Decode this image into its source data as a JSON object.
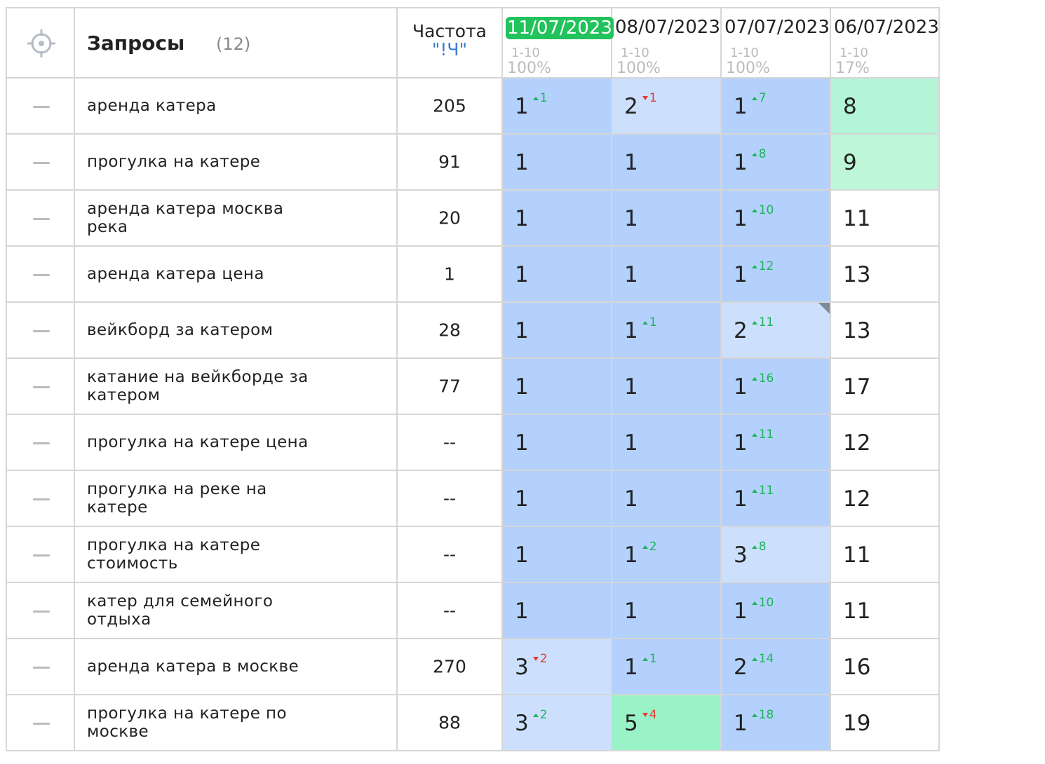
{
  "header": {
    "title": "Запросы",
    "count": "(12)",
    "frequency_title": "Частота",
    "frequency_type": "\"!Ч\"",
    "dates": [
      {
        "date": "11/07/2023",
        "range": "1-10",
        "share": "100%",
        "highlight": true
      },
      {
        "date": "08/07/2023",
        "range": "1-10",
        "share": "100%",
        "highlight": false
      },
      {
        "date": "07/07/2023",
        "range": "1-10",
        "share": "100%",
        "highlight": false
      },
      {
        "date": "06/07/2023",
        "range": "1-10",
        "share": "17%",
        "highlight": false
      }
    ]
  },
  "rows": [
    {
      "query": "аренда катера",
      "frequency": 205,
      "positions": [
        {
          "value": 1,
          "change": 1,
          "trend": "up",
          "color": "#b3d1fc"
        },
        {
          "value": 2,
          "change": 1,
          "trend": "down",
          "color": "#cce0fd"
        },
        {
          "value": 1,
          "change": 7,
          "trend": "up",
          "color": "#b3d1fc"
        },
        {
          "value": 8,
          "color": "#b3f5d6"
        }
      ]
    },
    {
      "query": "прогулка на катере",
      "frequency": 91,
      "positions": [
        {
          "value": 1,
          "color": "#b3d1fc"
        },
        {
          "value": 1,
          "color": "#b3d1fc"
        },
        {
          "value": 1,
          "change": 8,
          "trend": "up",
          "color": "#b3d1fc"
        },
        {
          "value": 9,
          "color": "#bdf7d8"
        }
      ]
    },
    {
      "query": "аренда катера москва река",
      "frequency": 20,
      "positions": [
        {
          "value": 1,
          "color": "#b3d1fc"
        },
        {
          "value": 1,
          "color": "#b3d1fc"
        },
        {
          "value": 1,
          "change": 10,
          "trend": "up",
          "color": "#b3d1fc"
        },
        {
          "value": 11,
          "color": "#ffffff"
        }
      ]
    },
    {
      "query": "аренда катера цена",
      "frequency": 1,
      "positions": [
        {
          "value": 1,
          "color": "#b3d1fc"
        },
        {
          "value": 1,
          "color": "#b3d1fc"
        },
        {
          "value": 1,
          "change": 12,
          "trend": "up",
          "color": "#b3d1fc"
        },
        {
          "value": 13,
          "color": "#ffffff"
        }
      ]
    },
    {
      "query": "вейкборд за катером",
      "frequency": 28,
      "positions": [
        {
          "value": 1,
          "color": "#b3d1fc"
        },
        {
          "value": 1,
          "change": 1,
          "trend": "up",
          "color": "#b3d1fc"
        },
        {
          "value": 2,
          "change": 11,
          "trend": "up",
          "color": "#cce0fd",
          "corner": true
        },
        {
          "value": 13,
          "color": "#ffffff"
        }
      ]
    },
    {
      "query": "катание на вейкборде за катером",
      "frequency": 77,
      "positions": [
        {
          "value": 1,
          "color": "#b3d1fc"
        },
        {
          "value": 1,
          "color": "#b3d1fc"
        },
        {
          "value": 1,
          "change": 16,
          "trend": "up",
          "color": "#b3d1fc"
        },
        {
          "value": 17,
          "color": "#ffffff"
        }
      ]
    },
    {
      "query": "прогулка на катере цена",
      "frequency": "--",
      "positions": [
        {
          "value": 1,
          "color": "#b3d1fc"
        },
        {
          "value": 1,
          "color": "#b3d1fc"
        },
        {
          "value": 1,
          "change": 11,
          "trend": "up",
          "color": "#b3d1fc"
        },
        {
          "value": 12,
          "color": "#ffffff"
        }
      ]
    },
    {
      "query": "прогулка на реке на катере",
      "frequency": "--",
      "positions": [
        {
          "value": 1,
          "color": "#b3d1fc"
        },
        {
          "value": 1,
          "color": "#b3d1fc"
        },
        {
          "value": 1,
          "change": 11,
          "trend": "up",
          "color": "#b3d1fc"
        },
        {
          "value": 12,
          "color": "#ffffff"
        }
      ]
    },
    {
      "query": "прогулка на катере стоимость",
      "frequency": "--",
      "positions": [
        {
          "value": 1,
          "color": "#b3d1fc"
        },
        {
          "value": 1,
          "change": 2,
          "trend": "up",
          "color": "#b3d1fc"
        },
        {
          "value": 3,
          "change": 8,
          "trend": "up",
          "color": "#cce0fd"
        },
        {
          "value": 11,
          "color": "#ffffff"
        }
      ]
    },
    {
      "query": "катер для семейного отдыха",
      "frequency": "--",
      "positions": [
        {
          "value": 1,
          "color": "#b3d1fc"
        },
        {
          "value": 1,
          "color": "#b3d1fc"
        },
        {
          "value": 1,
          "change": 10,
          "trend": "up",
          "color": "#b3d1fc"
        },
        {
          "value": 11,
          "color": "#ffffff"
        }
      ]
    },
    {
      "query": "аренда катера в москве",
      "frequency": 270,
      "positions": [
        {
          "value": 3,
          "change": 2,
          "trend": "down",
          "color": "#cce0fd"
        },
        {
          "value": 1,
          "change": 1,
          "trend": "up",
          "color": "#b3d1fc"
        },
        {
          "value": 2,
          "change": 14,
          "trend": "up",
          "color": "#b3d1fc"
        },
        {
          "value": 16,
          "color": "#ffffff"
        }
      ]
    },
    {
      "query": "прогулка на катере по москве",
      "frequency": 88,
      "positions": [
        {
          "value": 3,
          "change": 2,
          "trend": "up",
          "color": "#cce0fd"
        },
        {
          "value": 5,
          "change": 4,
          "trend": "down",
          "color": "#99f3c7"
        },
        {
          "value": 1,
          "change": 18,
          "trend": "up",
          "color": "#b3d1fc"
        },
        {
          "value": 19,
          "color": "#ffffff"
        }
      ]
    }
  ]
}
